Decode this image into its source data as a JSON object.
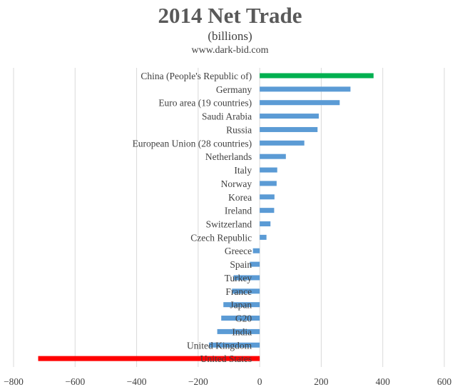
{
  "chart_data": {
    "type": "bar",
    "orientation": "horizontal",
    "title": "2014 Net Trade",
    "subtitle": "(billions)",
    "source": "www.dark-bid.com",
    "xlim": [
      -800,
      600
    ],
    "xticks": [
      -800,
      -600,
      -400,
      -200,
      0,
      200,
      400,
      600
    ],
    "grid": "vertical",
    "legend": "none",
    "colors": {
      "default": "#5b9bd5",
      "highlight_top": "#00b050",
      "highlight_bottom": "#ff0000",
      "grid": "#d9d9d9",
      "text": "#404040"
    },
    "categories": [
      "China (People's Republic of)",
      "Germany",
      "Euro area (19 countries)",
      "Saudi Arabia",
      "Russia",
      "European Union (28 countries)",
      "Netherlands",
      "Italy",
      "Norway",
      "Korea",
      "Ireland",
      "Switzerland",
      "Czech Republic",
      "Greece",
      "Spain",
      "Turkey",
      "France",
      "Japan",
      "G20",
      "India",
      "United Kingdom",
      "United States"
    ],
    "values": [
      370,
      295,
      260,
      192,
      188,
      145,
      85,
      57,
      55,
      48,
      47,
      35,
      22,
      -22,
      -32,
      -85,
      -90,
      -118,
      -125,
      -138,
      -165,
      -720
    ],
    "bar_colors": [
      "#00b050",
      "#5b9bd5",
      "#5b9bd5",
      "#5b9bd5",
      "#5b9bd5",
      "#5b9bd5",
      "#5b9bd5",
      "#5b9bd5",
      "#5b9bd5",
      "#5b9bd5",
      "#5b9bd5",
      "#5b9bd5",
      "#5b9bd5",
      "#5b9bd5",
      "#5b9bd5",
      "#5b9bd5",
      "#5b9bd5",
      "#5b9bd5",
      "#5b9bd5",
      "#5b9bd5",
      "#5b9bd5",
      "#ff0000"
    ]
  }
}
